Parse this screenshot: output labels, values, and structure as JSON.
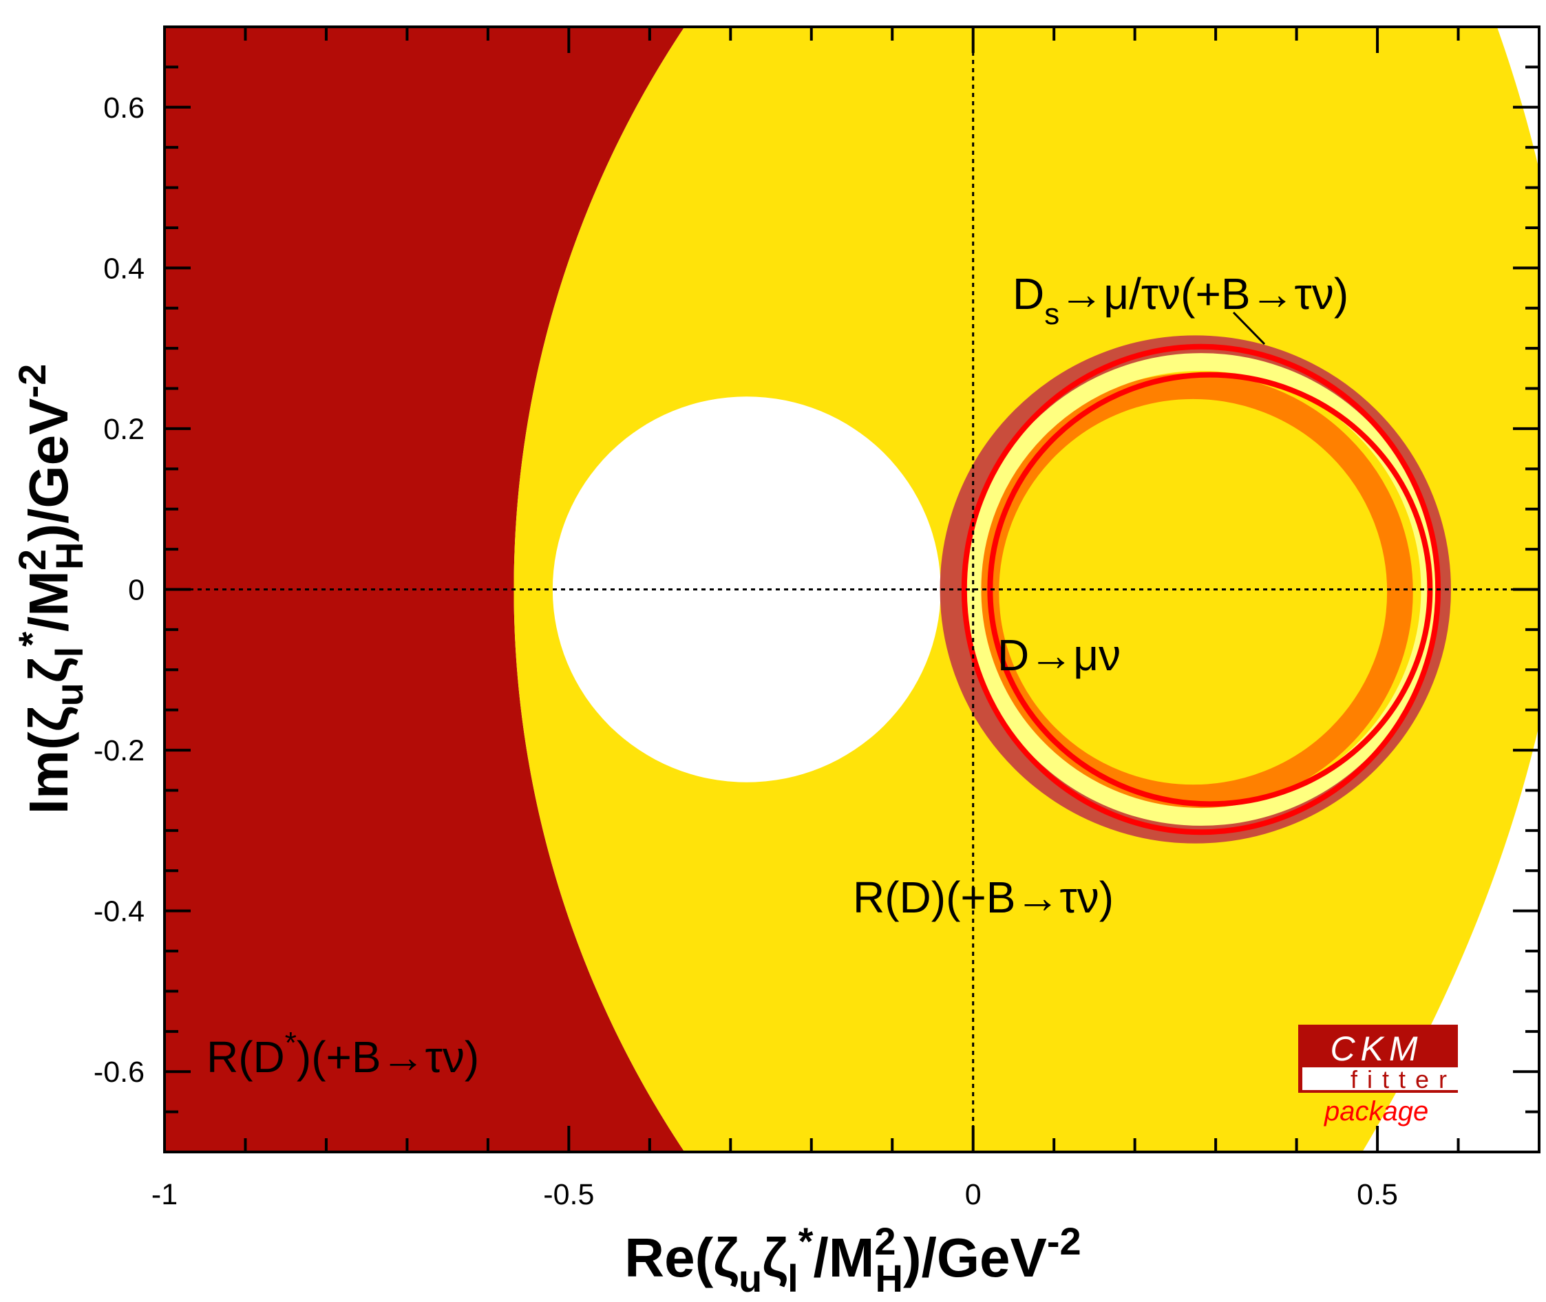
{
  "chart_data": {
    "type": "contour",
    "xlabel_parts": [
      {
        "t": "Re(ζ",
        "s": "n"
      },
      {
        "t": "u",
        "s": "sub"
      },
      {
        "t": "ζ",
        "s": "n"
      },
      {
        "t": "l",
        "s": "sub"
      },
      {
        "t": "*",
        "s": "sup"
      },
      {
        "t": "/M",
        "s": "n"
      },
      {
        "t": "2",
        "s": "sup"
      },
      {
        "t": "H",
        "s": "subb"
      },
      {
        "t": ")/GeV",
        "s": "n"
      },
      {
        "t": "-2",
        "s": "sup"
      }
    ],
    "ylabel_parts": [
      {
        "t": "Im(ζ",
        "s": "n"
      },
      {
        "t": "u",
        "s": "sub"
      },
      {
        "t": "ζ",
        "s": "n"
      },
      {
        "t": "l",
        "s": "sub"
      },
      {
        "t": "*",
        "s": "sup"
      },
      {
        "t": "/M",
        "s": "n"
      },
      {
        "t": "2",
        "s": "sup"
      },
      {
        "t": "H",
        "s": "subb"
      },
      {
        "t": ")/GeV",
        "s": "n"
      },
      {
        "t": "-2",
        "s": "sup"
      }
    ],
    "xlim": [
      -1,
      0.7
    ],
    "ylim": [
      -0.7,
      0.7
    ],
    "xticks": [
      {
        "v": -1,
        "label": "-1"
      },
      {
        "v": -0.5,
        "label": "-0.5"
      },
      {
        "v": 0,
        "label": "0"
      },
      {
        "v": 0.5,
        "label": "0.5"
      }
    ],
    "yticks": [
      {
        "v": 0.6,
        "label": "0.6"
      },
      {
        "v": 0.4,
        "label": "0.4"
      },
      {
        "v": 0.2,
        "label": "0.2"
      },
      {
        "v": 0,
        "label": "0"
      },
      {
        "v": -0.2,
        "label": "-0.2"
      },
      {
        "v": -0.4,
        "label": "-0.4"
      },
      {
        "v": -0.6,
        "label": "-0.6"
      }
    ],
    "grid": false,
    "reference_lines": [
      "x=0",
      "y=0"
    ],
    "regions": [
      {
        "name": "R(D*)(+B→τν)",
        "color": "#b30c07",
        "shape": "left of circle",
        "center": [
          0.698,
          0
        ],
        "radius": 1.266
      },
      {
        "name": "R(D)(+B→τν)",
        "color": "#ffe30a",
        "shape": "band",
        "excluded_hole": {
          "center": [
            -0.28,
            0
          ],
          "radius": 0.24
        }
      },
      {
        "name": "Ds→μ/τν(+B→τν)",
        "colors": [
          "#c94d3c",
          "#ffff80"
        ],
        "shape": "ring",
        "center": [
          0.28,
          0
        ],
        "radius": [
          0.27,
          0.315
        ]
      },
      {
        "name": "D→μν",
        "color": "#ff8000",
        "shape": "ring",
        "center": [
          0.28,
          0
        ],
        "radius": [
          0.235,
          0.27
        ]
      },
      {
        "name": "combined",
        "color": "#ff0000",
        "shape": "ring outline",
        "center": [
          0.285,
          0
        ],
        "radius": [
          0.27,
          0.3
        ]
      }
    ],
    "annotations": [
      {
        "main": "D",
        "sub": "s",
        "rest": "→μ/τν(+B→τν)"
      },
      {
        "main": "D→μν"
      },
      {
        "main": "R(D)(+B→τν)"
      },
      {
        "main": "R(D",
        "sup": "*",
        "rest": ")(+B→τν)"
      }
    ]
  },
  "logo": {
    "line1": "CKM",
    "line2": "fitter",
    "line3": "package",
    "dark": "#b30c07",
    "accent": "#ff0000"
  }
}
